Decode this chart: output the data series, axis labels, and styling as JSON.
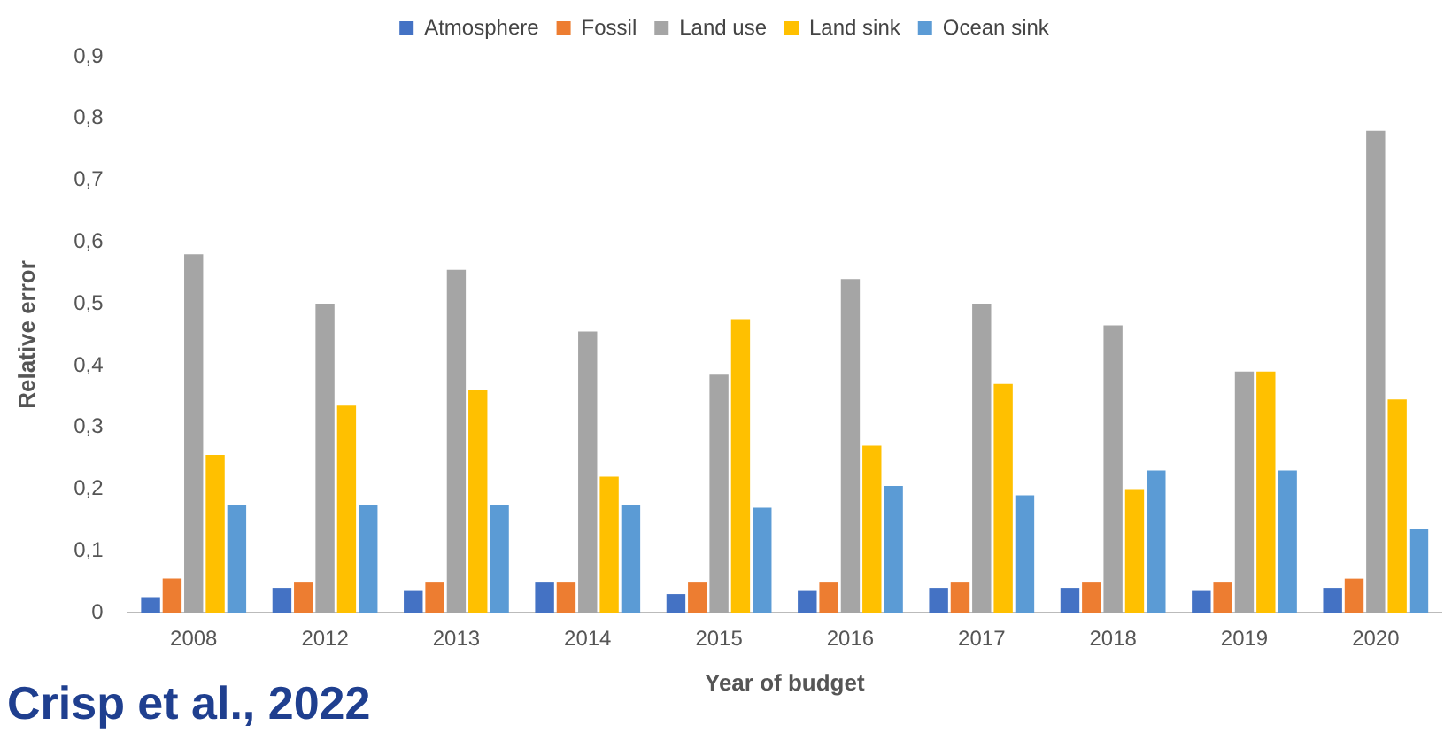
{
  "chart_data": {
    "type": "bar",
    "xlabel": "Year of budget",
    "ylabel": "Relative error",
    "categories": [
      "2008",
      "2012",
      "2013",
      "2014",
      "2015",
      "2016",
      "2017",
      "2018",
      "2019",
      "2020"
    ],
    "series": [
      {
        "name": "Atmosphere",
        "color": "#4472c4",
        "values": [
          0.025,
          0.04,
          0.035,
          0.05,
          0.03,
          0.035,
          0.04,
          0.04,
          0.035,
          0.04
        ]
      },
      {
        "name": "Fossil",
        "color": "#ed7d31",
        "values": [
          0.055,
          0.05,
          0.05,
          0.05,
          0.05,
          0.05,
          0.05,
          0.05,
          0.05,
          0.055
        ]
      },
      {
        "name": "Land use",
        "color": "#a5a5a5",
        "values": [
          0.58,
          0.5,
          0.555,
          0.455,
          0.385,
          0.54,
          0.5,
          0.465,
          0.39,
          0.78
        ]
      },
      {
        "name": "Land sink",
        "color": "#ffc000",
        "values": [
          0.255,
          0.335,
          0.36,
          0.22,
          0.475,
          0.27,
          0.37,
          0.2,
          0.39,
          0.345
        ]
      },
      {
        "name": "Ocean sink",
        "color": "#5b9bd5",
        "values": [
          0.175,
          0.175,
          0.175,
          0.175,
          0.17,
          0.205,
          0.19,
          0.23,
          0.23,
          0.135
        ]
      }
    ],
    "ylim": [
      0,
      0.9
    ],
    "yticks": [
      0,
      {
        "value": 0.1,
        "label": "0,1"
      },
      {
        "value": 0.2,
        "label": "0,2"
      },
      {
        "value": 0.3,
        "label": "0,3"
      },
      {
        "value": 0.4,
        "label": "0,4"
      },
      {
        "value": 0.5,
        "label": "0,5"
      },
      {
        "value": 0.6,
        "label": "0,6"
      },
      {
        "value": 0.7,
        "label": "0,7"
      },
      {
        "value": 0.8,
        "label": "0,8"
      },
      {
        "value": 0.9,
        "label": "0,9"
      }
    ],
    "grid": false,
    "legend": "top",
    "annotations": [
      "Crisp et al., 2022"
    ]
  }
}
